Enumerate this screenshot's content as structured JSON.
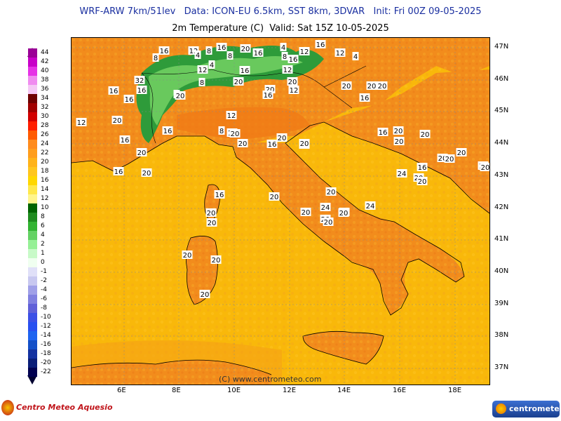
{
  "header": {
    "line1": "WRF-ARW 7km/51lev   Data: ICON-EU 6.5km, SST 8km, 3DVAR   Init: Fri 00Z 09-05-2025",
    "line2": "2m Temperature (C)  Valid: Sat 15Z 10-05-2025"
  },
  "legend": {
    "values": [
      "44",
      "42",
      "40",
      "38",
      "36",
      "34",
      "32",
      "30",
      "28",
      "26",
      "24",
      "22",
      "20",
      "18",
      "16",
      "14",
      "12",
      "10",
      "8",
      "6",
      "4",
      "2",
      "1",
      "0",
      "-1",
      "-2",
      "-4",
      "-6",
      "-8",
      "-10",
      "-12",
      "-14",
      "-16",
      "-18",
      "-20",
      "-22"
    ],
    "colors": [
      "#9a0096",
      "#c800c8",
      "#e632e6",
      "#f08cf0",
      "#f5c8f5",
      "#6e0000",
      "#a00000",
      "#d20000",
      "#ff1e00",
      "#ff5a00",
      "#ff8c1e",
      "#ff9e1e",
      "#ffb31a",
      "#ffc61e",
      "#ffd700",
      "#ffe84b",
      "#fff58c",
      "#006400",
      "#1e8c1e",
      "#32b432",
      "#64d264",
      "#96f096",
      "#c8fac8",
      "#f0fff0",
      "#e0e0f8",
      "#c8c8f0",
      "#a0a0e8",
      "#8080e0",
      "#6060d8",
      "#3c50e6",
      "#2850f0",
      "#1e64f0",
      "#1450c8",
      "#1432a0",
      "#0a1e78",
      "#000050"
    ]
  },
  "axes": {
    "lon_labels": [
      "6E",
      "8E",
      "10E",
      "12E",
      "14E",
      "16E",
      "18E"
    ],
    "lat_labels": [
      "47N",
      "46N",
      "45N",
      "44N",
      "43N",
      "42N",
      "41N",
      "40N",
      "39N",
      "38N",
      "37N"
    ]
  },
  "contour_labels": [
    "12",
    "4",
    "8",
    "16",
    "20",
    "16",
    "4",
    "8",
    "12",
    "16",
    "12",
    "4",
    "16",
    "12",
    "20",
    "12",
    "8",
    "4",
    "12",
    "8",
    "32",
    "16",
    "8",
    "16",
    "4",
    "20",
    "16",
    "20",
    "20",
    "16",
    "12",
    "8",
    "16",
    "20",
    "20",
    "16",
    "16",
    "20",
    "16",
    "20",
    "20",
    "16",
    "16",
    "20",
    "16",
    "20",
    "16",
    "20",
    "16",
    "12",
    "20",
    "16",
    "20",
    "20",
    "20",
    "24",
    "16",
    "16",
    "20",
    "20",
    "20",
    "20",
    "20",
    "20",
    "20",
    "20",
    "16",
    "20",
    "20",
    "20",
    "20",
    "20",
    "20",
    "20",
    "20",
    "20",
    "20",
    "24",
    "20",
    "24"
  ],
  "watermark": "(C) www.centrometeo.com",
  "logo_left": "Centro Meteo Aquesio",
  "logo_right": "centrometeo",
  "colors": {
    "sea": "#f9b80a",
    "land": "#f28c1c",
    "alps": "#2e9b3a",
    "title": "#1a2fa0"
  }
}
